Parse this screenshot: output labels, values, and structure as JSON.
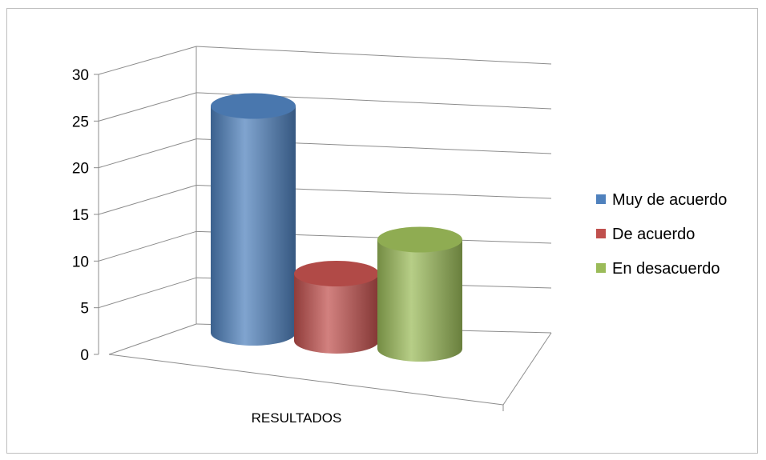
{
  "chart_data": {
    "type": "bar",
    "style": "3d-cylinder",
    "categories": [
      "RESULTADOS"
    ],
    "series": [
      {
        "name": "Muy de acuerdo",
        "values": [
          27
        ],
        "color": "#4F81BD"
      },
      {
        "name": "De acuerdo",
        "values": [
          8
        ],
        "color": "#C0504D"
      },
      {
        "name": "En desacuerdo",
        "values": [
          13
        ],
        "color": "#9BBB59"
      }
    ],
    "yticks": [
      0,
      5,
      10,
      15,
      20,
      25,
      30
    ],
    "ylim": [
      0,
      30
    ],
    "grid": true,
    "legend_position": "right"
  }
}
